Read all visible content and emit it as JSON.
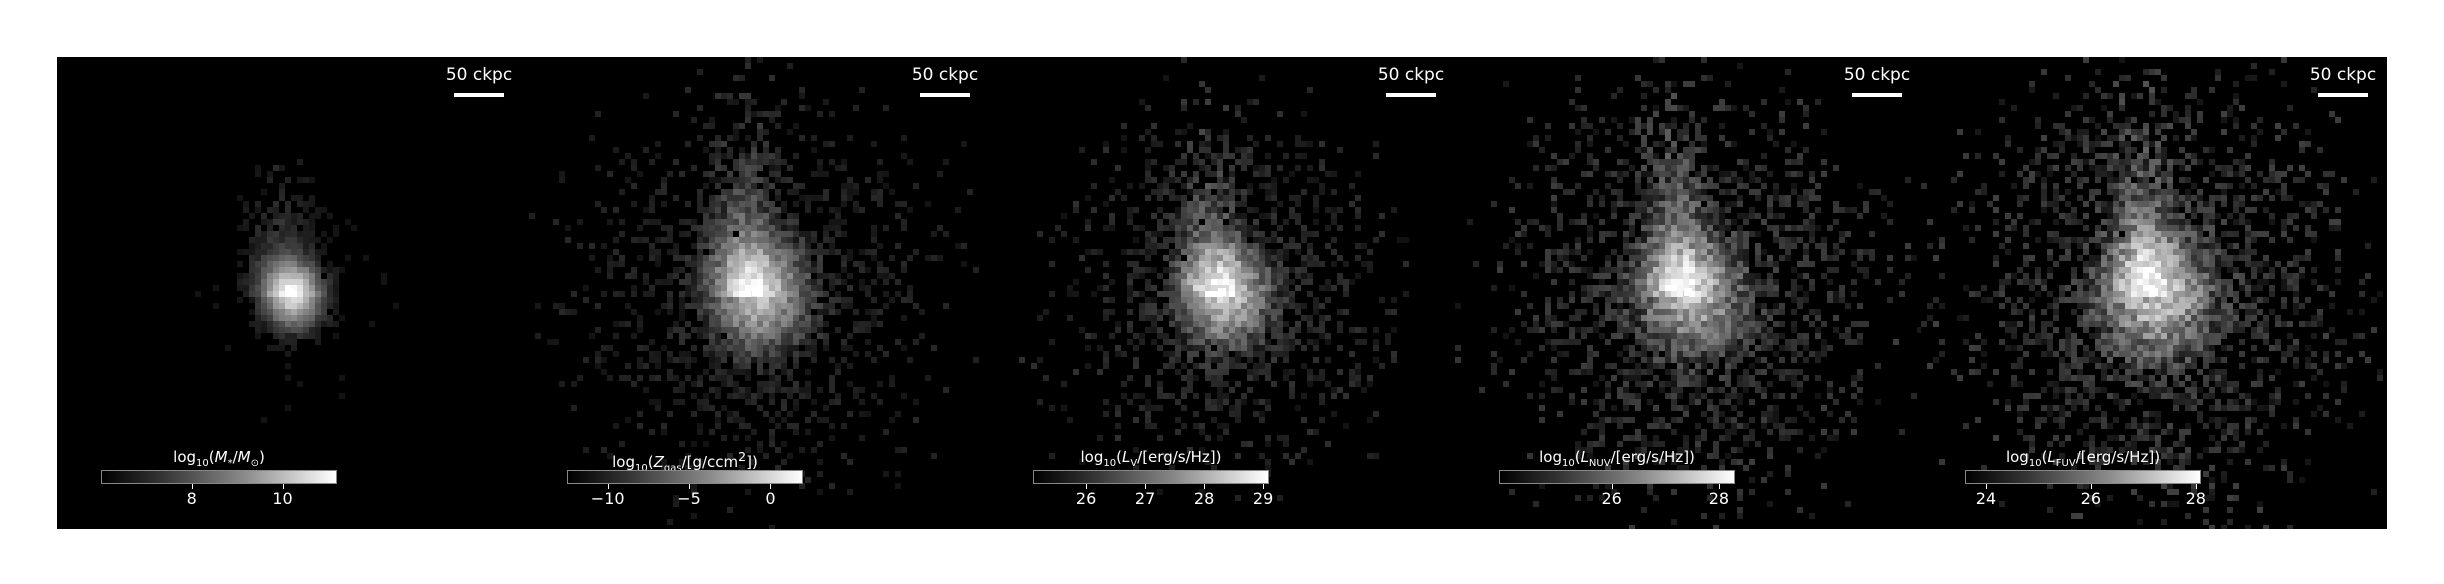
{
  "panels": [
    {
      "scale_label": "50 ckpc",
      "colorbar": {
        "label_html": "log<sub>10</sub>(<i>M</i><sub>*</sub>/<i>M</i><sub>⊙</sub>)",
        "ticks": [
          {
            "value": 8,
            "label": "8"
          },
          {
            "value": 10,
            "label": "10"
          }
        ],
        "range": [
          6,
          11.2
        ]
      },
      "image": {
        "intensity": 0.95,
        "halo": 0.55,
        "noise": 0.12,
        "seed": 11
      }
    },
    {
      "scale_label": "50 ckpc",
      "colorbar": {
        "label_html": "log<sub>10</sub>(<i>Z</i><sub>gas</sub>/[g/ccm<sup>2</sup>])",
        "ticks": [
          {
            "value": -10,
            "label": "−10"
          },
          {
            "value": -5,
            "label": "−5"
          },
          {
            "value": 0,
            "label": "0"
          }
        ],
        "range": [
          -12.5,
          2
        ]
      },
      "image": {
        "intensity": 0.75,
        "halo": 0.95,
        "noise": 0.25,
        "seed": 23
      }
    },
    {
      "scale_label": "50 ckpc",
      "colorbar": {
        "label_html": "log<sub>10</sub>(<i>L</i><sub>V</sub>/[erg/s/Hz])",
        "ticks": [
          {
            "value": 26,
            "label": "26"
          },
          {
            "value": 27,
            "label": "27"
          },
          {
            "value": 28,
            "label": "28"
          },
          {
            "value": 29,
            "label": "29"
          }
        ],
        "range": [
          25.1,
          29.1
        ]
      },
      "image": {
        "intensity": 0.8,
        "halo": 0.85,
        "noise": 0.3,
        "seed": 37
      }
    },
    {
      "scale_label": "50 ckpc",
      "colorbar": {
        "label_html": "log<sub>10</sub>(<i>L</i><sub>NUV</sub>/[erg/s/Hz])",
        "ticks": [
          {
            "value": 26,
            "label": "26"
          },
          {
            "value": 28,
            "label": "28"
          }
        ],
        "range": [
          23.9,
          28.3
        ]
      },
      "image": {
        "intensity": 0.7,
        "halo": 1.0,
        "noise": 0.38,
        "seed": 53
      }
    },
    {
      "scale_label": "50 ckpc",
      "colorbar": {
        "label_html": "log<sub>10</sub>(<i>L</i><sub>FUV</sub>/[erg/s/Hz])",
        "ticks": [
          {
            "value": 24,
            "label": "24"
          },
          {
            "value": 26,
            "label": "26"
          },
          {
            "value": 28,
            "label": "28"
          }
        ],
        "range": [
          23.6,
          28.1
        ]
      },
      "image": {
        "intensity": 0.75,
        "halo": 1.05,
        "noise": 0.4,
        "seed": 71
      }
    }
  ]
}
